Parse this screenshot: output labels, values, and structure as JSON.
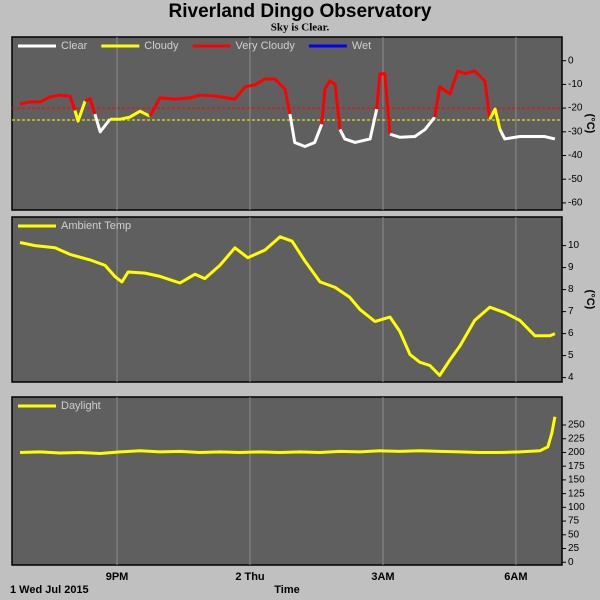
{
  "title": "Riverland Dingo Observatory",
  "subtitle": "Sky is Clear.",
  "chart_data": [
    {
      "type": "line",
      "x": [
        18.81,
        19.04,
        19.26,
        19.49,
        19.71,
        19.94,
        20.05,
        20.12,
        20.28,
        20.39,
        20.5,
        20.62,
        20.84,
        21.07,
        21.29,
        21.52,
        21.74,
        21.97,
        22.31,
        22.65,
        22.87,
        23.21,
        23.66,
        23.89,
        24.11,
        24.34,
        24.56,
        24.79,
        24.9,
        25.01,
        25.24,
        25.46,
        25.62,
        25.69,
        25.8,
        25.92,
        26.03,
        26.14,
        26.37,
        26.71,
        26.86,
        26.93,
        27.04,
        27.16,
        27.38,
        27.72,
        27.95,
        28.17,
        28.28,
        28.51,
        28.69,
        28.85,
        29.07,
        29.3,
        29.41,
        29.53,
        29.64,
        29.75,
        30.09,
        30.43,
        30.65,
        30.88
      ],
      "values": [
        -18.3,
        -17.4,
        -17.4,
        -15.3,
        -14.5,
        -15,
        -21,
        -25.5,
        -17,
        -16,
        -22.5,
        -30,
        -24.7,
        -24.7,
        -23.8,
        -21.3,
        -23.4,
        -15.7,
        -16.2,
        -15.7,
        -14.5,
        -14.9,
        -16.2,
        -11,
        -10.2,
        -7.7,
        -7.7,
        -12,
        -22.5,
        -34.5,
        -36.2,
        -34.5,
        -26.8,
        -12,
        -8.5,
        -10,
        -29,
        -33,
        -34.5,
        -33,
        -20.4,
        -5.5,
        -5.5,
        -31,
        -32.3,
        -32,
        -29,
        -23.8,
        -11,
        -14,
        -4.3,
        -5.5,
        -4.3,
        -8.5,
        -24.7,
        -20.4,
        -29,
        -33,
        -32,
        -32,
        -32,
        -33
      ],
      "conditions": [
        {
          "name": "Clear",
          "color": "#ffffff"
        },
        {
          "name": "Cloudy",
          "color": "#ffff00",
          "threshold": -25
        },
        {
          "name": "Very Cloudy",
          "color": "#ff0000",
          "threshold": -20
        },
        {
          "name": "Wet",
          "color": "#0000ff"
        }
      ],
      "xlim": [
        18.63,
        31.04
      ],
      "xticks": [
        21,
        24,
        27,
        30
      ],
      "ylim": [
        -63,
        10
      ],
      "yticks": [
        0,
        -10,
        -20,
        -30,
        -40,
        -50,
        -60
      ],
      "ylabel": "(°C)"
    },
    {
      "type": "line",
      "x": [
        18.81,
        19.15,
        19.6,
        19.94,
        20.39,
        20.73,
        20.95,
        21.11,
        21.25,
        21.63,
        21.97,
        22.42,
        22.76,
        22.98,
        23.32,
        23.66,
        23.95,
        24.34,
        24.68,
        24.95,
        25.24,
        25.58,
        25.92,
        26.25,
        26.48,
        26.82,
        27.16,
        27.38,
        27.61,
        27.83,
        28.06,
        28.28,
        28.51,
        28.74,
        29.07,
        29.41,
        29.75,
        30.09,
        30.43,
        30.77,
        30.88
      ],
      "series": [
        {
          "name": "Ambient Temp",
          "color": "#ffff00",
          "values": [
            10.14,
            10,
            9.9,
            9.6,
            9.35,
            9.1,
            8.6,
            8.35,
            8.8,
            8.75,
            8.6,
            8.3,
            8.7,
            8.5,
            9.1,
            9.9,
            9.45,
            9.8,
            10.4,
            10.2,
            9.3,
            8.35,
            8.1,
            7.65,
            7.1,
            6.55,
            6.75,
            6.1,
            5.05,
            4.7,
            4.55,
            4.1,
            4.8,
            5.45,
            6.6,
            7.2,
            6.95,
            6.6,
            5.9,
            5.9,
            6.0
          ]
        }
      ],
      "xlim": [
        18.63,
        31.04
      ],
      "xticks": [
        21,
        24,
        27,
        30
      ],
      "ylim": [
        3.8,
        11.3
      ],
      "yticks": [
        10,
        9,
        8,
        7,
        6,
        5,
        4
      ],
      "ylabel": "(°C)"
    },
    {
      "type": "line",
      "x": [
        18.81,
        19.26,
        19.71,
        20.16,
        20.62,
        21.07,
        21.52,
        21.97,
        22.42,
        22.87,
        23.32,
        23.77,
        24.22,
        24.68,
        25.13,
        25.58,
        26.03,
        26.48,
        26.93,
        27.38,
        27.83,
        28.28,
        28.74,
        29.19,
        29.64,
        30.09,
        30.54,
        30.72,
        30.81,
        30.88
      ],
      "series": [
        {
          "name": "Daylight",
          "color": "#ffff00",
          "values": [
            200,
            201,
            199,
            200,
            198,
            201,
            203,
            201,
            202,
            200,
            201,
            200,
            201,
            200,
            201,
            200,
            202,
            201,
            203,
            202,
            203,
            202,
            201,
            200,
            200,
            201,
            203,
            210,
            235,
            265
          ]
        }
      ],
      "xlim": [
        18.63,
        31.04
      ],
      "xticks": [
        {
          "value": 21,
          "label": "9PM"
        },
        {
          "value": 24,
          "label": "2 Thu"
        },
        {
          "value": 27,
          "label": "3AM"
        },
        {
          "value": 30,
          "label": "6AM"
        }
      ],
      "xlabel": "Time",
      "x_start_label": "1 Wed Jul 2015",
      "ylim": [
        -5,
        301
      ],
      "yticks": [
        0,
        25,
        50,
        75,
        100,
        125,
        150,
        175,
        200,
        225,
        250
      ]
    }
  ]
}
